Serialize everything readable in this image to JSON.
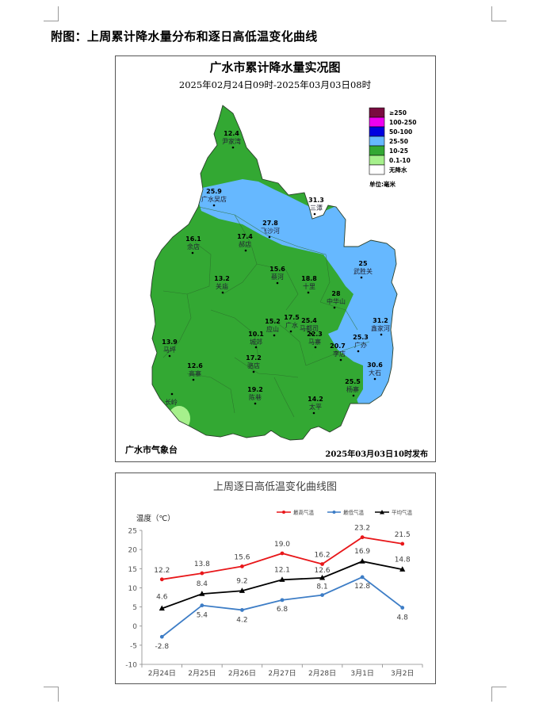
{
  "page": {
    "heading": "附图：上周累计降水量分布和逐日高低温变化曲线"
  },
  "map": {
    "title": "广水市累计降水量实况图",
    "subtitle": "2025年02月24日09时-2025年03月03日08时",
    "footer_left": "广水市气象台",
    "footer_right": "2025年03月03日10时发布",
    "legend": {
      "items": [
        {
          "label": "≥250",
          "color": "#7a0b40"
        },
        {
          "label": "100-250",
          "color": "#f000f0"
        },
        {
          "label": "50-100",
          "color": "#0000e0"
        },
        {
          "label": "25-50",
          "color": "#66b8ff"
        },
        {
          "label": "10-25",
          "color": "#33a833"
        },
        {
          "label": "0.1-10",
          "color": "#a6f08c"
        },
        {
          "label": "无降水",
          "color": "#ffffff"
        }
      ],
      "unit": "单位:毫米"
    },
    "stations": [
      {
        "value": "12.4",
        "name": "尹家湾"
      },
      {
        "value": "25.9",
        "name": "广水吴店"
      },
      {
        "value": "31.3",
        "name": "三潭"
      },
      {
        "value": "27.8",
        "name": "飞沙河"
      },
      {
        "value": "16.1",
        "name": "余店"
      },
      {
        "value": "17.4",
        "name": "郝店"
      },
      {
        "value": "25",
        "name": "武胜关"
      },
      {
        "value": "15.6",
        "name": "蔡河"
      },
      {
        "value": "13.2",
        "name": "关庙"
      },
      {
        "value": "18.8",
        "name": "十里"
      },
      {
        "value": "28",
        "name": "中华山"
      },
      {
        "value": "31.2",
        "name": "鑫家河"
      },
      {
        "value": "13.9",
        "name": "马坪"
      },
      {
        "value": "15.2",
        "name": "应山"
      },
      {
        "value": "17.5",
        "name": "广水"
      },
      {
        "value": "25.4",
        "name": "马都司"
      },
      {
        "value": "22.3",
        "name": "马寨"
      },
      {
        "value": "25.3",
        "name": "广办"
      },
      {
        "value": "10.1",
        "name": "城郊"
      },
      {
        "value": "20.7",
        "name": "李店"
      },
      {
        "value": "30.6",
        "name": "大石"
      },
      {
        "value": "17.2",
        "name": "骆店"
      },
      {
        "value": "12.6",
        "name": "高寨"
      },
      {
        "value": "25.5",
        "name": "杨寨"
      },
      {
        "value": "19.2",
        "name": "陈巷"
      },
      {
        "value": "14.2",
        "name": "太平"
      },
      {
        "value": "",
        "name": "长岭"
      }
    ]
  },
  "chart_data": {
    "type": "line",
    "title": "上周逐日高低温变化曲线图",
    "ylabel": "温度（℃）",
    "xlabel": "",
    "ylim": [
      -10,
      25
    ],
    "yticks": [
      -10,
      -5,
      0,
      5,
      10,
      15,
      20,
      25
    ],
    "grid": false,
    "legend_position": "top-right",
    "categories": [
      "2月24日",
      "2月25日",
      "2月26日",
      "2月27日",
      "2月28日",
      "3月1日",
      "3月2日"
    ],
    "series": [
      {
        "name": "最高气温",
        "color": "#e8171a",
        "marker": "circle",
        "values": [
          12.2,
          13.8,
          15.6,
          19.0,
          16.2,
          23.2,
          21.5
        ]
      },
      {
        "name": "最低气温",
        "color": "#3d7dc6",
        "marker": "diamond",
        "values": [
          -2.8,
          5.4,
          4.2,
          6.8,
          8.1,
          12.8,
          4.8
        ]
      },
      {
        "name": "平均气温",
        "color": "#000000",
        "marker": "triangle",
        "values": [
          4.6,
          8.4,
          9.2,
          12.1,
          12.6,
          16.9,
          14.8
        ]
      }
    ]
  }
}
